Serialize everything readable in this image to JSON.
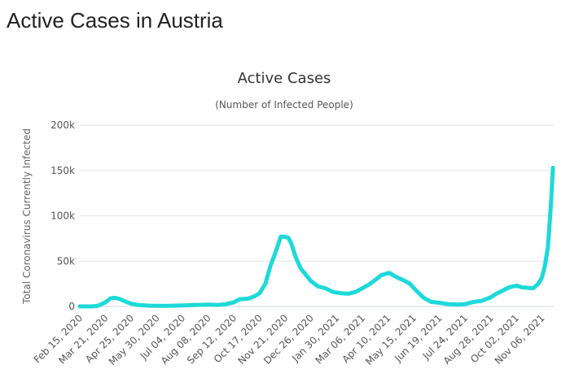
{
  "page": {
    "heading": "Active Cases in Austria"
  },
  "colors": {
    "series": "#1dd9d9",
    "grid": "#e6e6e6",
    "axis": "#ccd6eb"
  },
  "chart_data": {
    "type": "line",
    "title": "Active Cases",
    "subtitle": "(Number of Infected People)",
    "xlabel": "",
    "ylabel": "Total Coronavirus Currently Infected",
    "ylim": [
      0,
      200000
    ],
    "yticks": [
      0,
      50000,
      100000,
      150000,
      200000
    ],
    "ytick_labels": [
      "0",
      "50k",
      "100k",
      "150k",
      "200k"
    ],
    "xticks": [
      "2020-02-15",
      "2020-03-21",
      "2020-04-25",
      "2020-05-30",
      "2020-07-04",
      "2020-08-08",
      "2020-09-12",
      "2020-10-17",
      "2020-11-21",
      "2020-12-26",
      "2021-01-30",
      "2021-03-06",
      "2021-04-10",
      "2021-05-15",
      "2021-06-19",
      "2021-07-24",
      "2021-08-28",
      "2021-10-02",
      "2021-11-06"
    ],
    "xtick_labels": [
      "Feb 15, 2020",
      "Mar 21, 2020",
      "Apr 25, 2020",
      "May 30, 2020",
      "Jul 04, 2020",
      "Aug 08, 2020",
      "Sep 12, 2020",
      "Oct 17, 2020",
      "Nov 21, 2020",
      "Dec 26, 2020",
      "Jan 30, 2021",
      "Mar 06, 2021",
      "Apr 10, 2021",
      "May 15, 2021",
      "Jun 19, 2021",
      "Jul 24, 2021",
      "Aug 28, 2021",
      "Oct 02, 2021",
      "Nov 06, 2021"
    ],
    "xlim": [
      "2020-02-15",
      "2021-11-22"
    ],
    "grid": true,
    "legend": "none",
    "series": [
      {
        "x": [
          "2020-02-15",
          "2020-03-01",
          "2020-03-10",
          "2020-03-20",
          "2020-03-28",
          "2020-04-03",
          "2020-04-10",
          "2020-04-18",
          "2020-04-25",
          "2020-05-05",
          "2020-05-20",
          "2020-06-10",
          "2020-07-01",
          "2020-07-20",
          "2020-08-08",
          "2020-08-20",
          "2020-09-01",
          "2020-09-12",
          "2020-09-20",
          "2020-10-01",
          "2020-10-10",
          "2020-10-17",
          "2020-10-25",
          "2020-11-01",
          "2020-11-08",
          "2020-11-15",
          "2020-11-18",
          "2020-11-25",
          "2020-11-29",
          "2020-12-05",
          "2020-12-12",
          "2020-12-20",
          "2020-12-26",
          "2021-01-05",
          "2021-01-15",
          "2021-01-25",
          "2021-02-05",
          "2021-02-15",
          "2021-02-25",
          "2021-03-06",
          "2021-03-15",
          "2021-03-25",
          "2021-04-01",
          "2021-04-07",
          "2021-04-12",
          "2021-04-20",
          "2021-05-01",
          "2021-05-10",
          "2021-05-18",
          "2021-05-28",
          "2021-06-08",
          "2021-06-19",
          "2021-07-01",
          "2021-07-15",
          "2021-07-24",
          "2021-08-05",
          "2021-08-15",
          "2021-08-28",
          "2021-09-05",
          "2021-09-15",
          "2021-09-22",
          "2021-10-02",
          "2021-10-10",
          "2021-10-18",
          "2021-10-25",
          "2021-11-01",
          "2021-11-06",
          "2021-11-10",
          "2021-11-14",
          "2021-11-18",
          "2021-11-21"
        ],
        "y": [
          0,
          0,
          500,
          4000,
          9000,
          9500,
          8000,
          5000,
          3000,
          1500,
          800,
          500,
          1000,
          1500,
          2000,
          1500,
          2500,
          4500,
          8000,
          8500,
          11000,
          14500,
          25000,
          45000,
          60000,
          77000,
          77000,
          76000,
          70000,
          55000,
          42000,
          34000,
          28000,
          22000,
          20000,
          16000,
          14500,
          14000,
          16000,
          20000,
          24000,
          30000,
          34500,
          36000,
          37000,
          33000,
          29000,
          25000,
          18000,
          10000,
          5000,
          4000,
          2500,
          2000,
          2500,
          5000,
          6000,
          10000,
          14000,
          18000,
          21000,
          23000,
          21000,
          20500,
          20000,
          25000,
          32000,
          45000,
          65000,
          110000,
          153000
        ]
      }
    ]
  }
}
